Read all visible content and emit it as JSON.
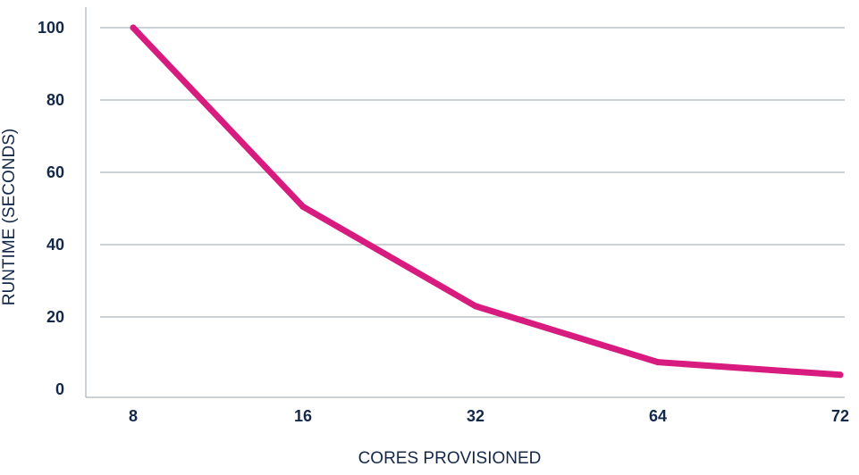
{
  "chart_data": {
    "type": "line",
    "title": "",
    "xlabel": "CORES PROVISIONED",
    "ylabel": "RUNTIME (SECONDS)",
    "categories": [
      "8",
      "16",
      "32",
      "64",
      "72"
    ],
    "y_ticks": [
      "0",
      "20",
      "40",
      "60",
      "80",
      "100"
    ],
    "ylim": [
      0,
      100
    ],
    "grid": true,
    "series": [
      {
        "values": [
          100,
          50.5,
          23,
          7.5,
          4
        ]
      }
    ],
    "colors": {
      "line": "#d81b7f",
      "text": "#14294a",
      "grid": "#9aa3ad"
    }
  }
}
